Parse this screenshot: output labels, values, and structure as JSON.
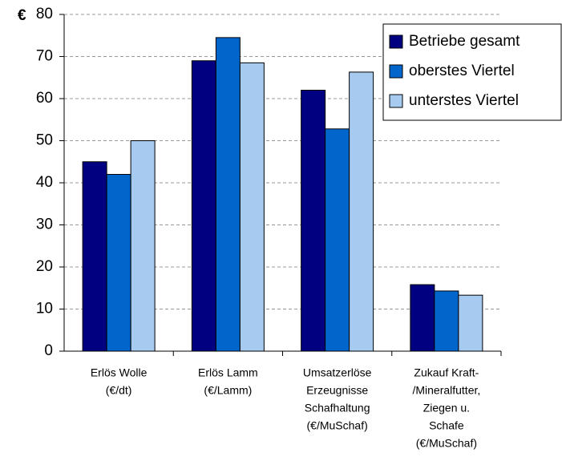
{
  "chart_data": {
    "type": "bar",
    "y_label": "€",
    "categories": [
      [
        "Erlös Wolle",
        "(€/dt)"
      ],
      [
        "Erlös Lamm",
        "(€/Lamm)"
      ],
      [
        "Umsatzerlöse",
        "Erzeugnisse",
        "Schafhaltung",
        "(€/MuSchaf)"
      ],
      [
        "Zukauf Kraft-",
        "/Mineralfutter,",
        "Ziegen u.",
        "Schafe",
        "(€/MuSchaf)"
      ]
    ],
    "series": [
      {
        "name": "Betriebe gesamt",
        "color": "#000080",
        "values": [
          45,
          69,
          62,
          15.8
        ]
      },
      {
        "name": "oberstes Viertel",
        "color": "#0066cc",
        "values": [
          42,
          74.5,
          52.8,
          14.3
        ]
      },
      {
        "name": "unterstes Viertel",
        "color": "#a6caf0",
        "values": [
          50,
          68.5,
          66.3,
          13.3
        ]
      }
    ],
    "ylim": [
      0,
      80
    ],
    "yticks": [
      0,
      10,
      20,
      30,
      40,
      50,
      60,
      70,
      80
    ],
    "grid": true,
    "legend": "upper right"
  }
}
